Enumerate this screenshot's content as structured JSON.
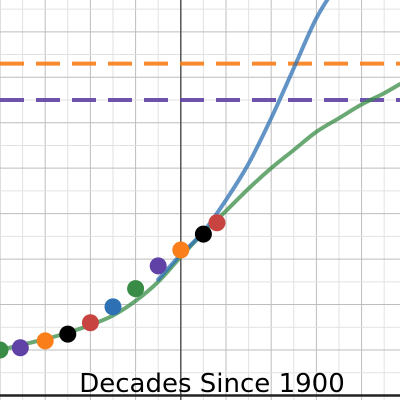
{
  "chart_data": {
    "type": "scatter",
    "xlabel": "Decades Since 1900",
    "xlim": [
      -4,
      4.85
    ],
    "ylim": [
      -1.1,
      7.7
    ],
    "grid": true,
    "points": [
      {
        "x": -4.0,
        "y": 0.0,
        "color": "#388c46"
      },
      {
        "x": -3.55,
        "y": 0.05,
        "color": "#6042a6"
      },
      {
        "x": -3.0,
        "y": 0.2,
        "color": "#fa7e19"
      },
      {
        "x": -2.5,
        "y": 0.35,
        "color": "#000000"
      },
      {
        "x": -2.0,
        "y": 0.6,
        "color": "#c74440"
      },
      {
        "x": -1.5,
        "y": 0.95,
        "color": "#2d70b3"
      },
      {
        "x": -1.0,
        "y": 1.35,
        "color": "#388c46"
      },
      {
        "x": -0.5,
        "y": 1.85,
        "color": "#6042a6"
      },
      {
        "x": 0.0,
        "y": 2.2,
        "color": "#fa7e19"
      },
      {
        "x": 0.5,
        "y": 2.55,
        "color": "#000000"
      },
      {
        "x": 0.8,
        "y": 2.8,
        "color": "#c74440"
      }
    ],
    "series": [
      {
        "color": "#388c46",
        "x": [
          -4.0,
          -3.5,
          -3.0,
          -2.5,
          -2.0,
          -1.5,
          -1.0,
          -0.5,
          0.0,
          0.5,
          1.0,
          1.5,
          2.0,
          2.5,
          3.0,
          3.5,
          4.0,
          4.5,
          4.85
        ],
        "y": [
          0.0,
          0.12,
          0.24,
          0.38,
          0.55,
          0.76,
          1.08,
          1.5,
          2.05,
          2.58,
          3.06,
          3.55,
          4.0,
          4.4,
          4.8,
          5.1,
          5.4,
          5.65,
          5.85
        ]
      },
      {
        "color": "#2d70b3",
        "x": [
          -0.5,
          0.0,
          0.5,
          1.0,
          1.5,
          2.0,
          2.5,
          3.0,
          3.5
        ],
        "y": [
          1.55,
          2.1,
          2.6,
          3.3,
          4.1,
          5.1,
          6.2,
          7.3,
          8.1
        ]
      }
    ],
    "reference_lines": [
      {
        "y": 6.3,
        "color": "#fa7e19"
      },
      {
        "y": 5.5,
        "color": "#6042a6"
      }
    ]
  }
}
